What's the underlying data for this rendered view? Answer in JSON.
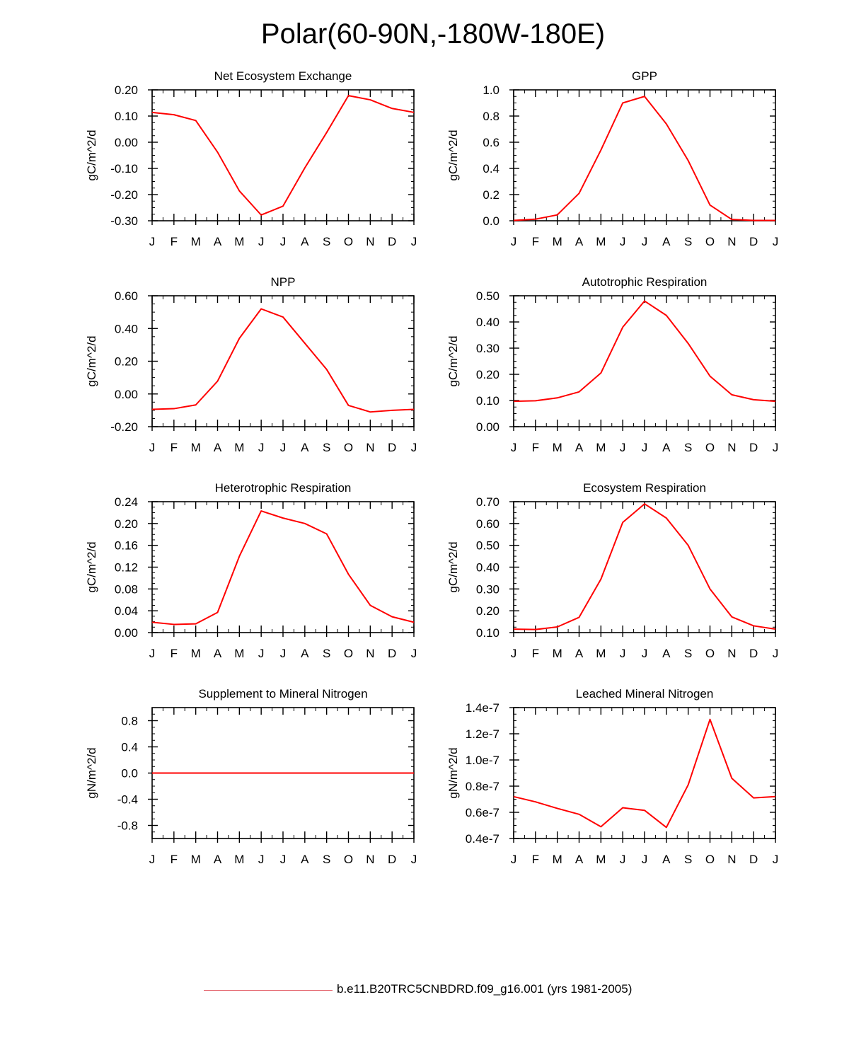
{
  "figure": {
    "title": "Polar(60-90N,-180W-180E)",
    "legend": {
      "label": "b.e11.B20TRC5CNBDRD.f09_g16.001 (yrs 1981-2005)",
      "color": "#e0505a"
    },
    "line_color": "#ff0000"
  },
  "chart_data": [
    {
      "type": "line",
      "title": "Net Ecosystem Exchange",
      "ylabel": "gC/m^2/d",
      "categories": [
        "J",
        "F",
        "M",
        "A",
        "M",
        "J",
        "J",
        "A",
        "S",
        "O",
        "N",
        "D",
        "J"
      ],
      "ylim": [
        -0.3,
        0.2
      ],
      "yticks": [
        -0.3,
        -0.2,
        -0.1,
        0.0,
        0.1,
        0.2
      ],
      "ytick_labels": [
        "-0.30",
        "-0.20",
        "-0.10",
        "0.00",
        "0.10",
        "0.20"
      ],
      "values": [
        0.114,
        0.105,
        0.083,
        -0.038,
        -0.186,
        -0.278,
        -0.244,
        -0.098,
        0.037,
        0.178,
        0.162,
        0.129,
        0.114
      ]
    },
    {
      "type": "line",
      "title": "GPP",
      "ylabel": "gC/m^2/d",
      "categories": [
        "J",
        "F",
        "M",
        "A",
        "M",
        "J",
        "J",
        "A",
        "S",
        "O",
        "N",
        "D",
        "J"
      ],
      "ylim": [
        0.0,
        1.0
      ],
      "yticks": [
        0.0,
        0.2,
        0.4,
        0.6,
        0.8,
        1.0
      ],
      "ytick_labels": [
        "0.0",
        "0.2",
        "0.4",
        "0.6",
        "0.8",
        "1.0"
      ],
      "values": [
        0.003,
        0.012,
        0.045,
        0.21,
        0.54,
        0.9,
        0.95,
        0.74,
        0.46,
        0.12,
        0.01,
        0.003,
        0.003
      ]
    },
    {
      "type": "line",
      "title": "NPP",
      "ylabel": "gC/m^2/d",
      "categories": [
        "J",
        "F",
        "M",
        "A",
        "M",
        "J",
        "J",
        "A",
        "S",
        "O",
        "N",
        "D",
        "J"
      ],
      "ylim": [
        -0.2,
        0.6
      ],
      "yticks": [
        -0.2,
        0.0,
        0.2,
        0.4,
        0.6
      ],
      "ytick_labels": [
        "-0.20",
        "0.00",
        "0.20",
        "0.40",
        "0.60"
      ],
      "values": [
        -0.094,
        -0.09,
        -0.067,
        0.078,
        0.34,
        0.52,
        0.47,
        0.31,
        0.15,
        -0.07,
        -0.11,
        -0.1,
        -0.094
      ]
    },
    {
      "type": "line",
      "title": "Autotrophic Respiration",
      "ylabel": "gC/m^2/d",
      "categories": [
        "J",
        "F",
        "M",
        "A",
        "M",
        "J",
        "J",
        "A",
        "S",
        "O",
        "N",
        "D",
        "J"
      ],
      "ylim": [
        0.0,
        0.5
      ],
      "yticks": [
        0.0,
        0.1,
        0.2,
        0.3,
        0.4,
        0.5
      ],
      "ytick_labels": [
        "0.00",
        "0.10",
        "0.20",
        "0.30",
        "0.40",
        "0.50"
      ],
      "values": [
        0.097,
        0.099,
        0.11,
        0.133,
        0.205,
        0.38,
        0.48,
        0.425,
        0.318,
        0.193,
        0.122,
        0.103,
        0.097
      ]
    },
    {
      "type": "line",
      "title": "Heterotrophic Respiration",
      "ylabel": "gC/m^2/d",
      "categories": [
        "J",
        "F",
        "M",
        "A",
        "M",
        "J",
        "J",
        "A",
        "S",
        "O",
        "N",
        "D",
        "J"
      ],
      "ylim": [
        0.0,
        0.24
      ],
      "yticks": [
        0.0,
        0.04,
        0.08,
        0.12,
        0.16,
        0.2,
        0.24
      ],
      "ytick_labels": [
        "0.00",
        "0.04",
        "0.08",
        "0.12",
        "0.16",
        "0.20",
        "0.24"
      ],
      "values": [
        0.019,
        0.015,
        0.016,
        0.037,
        0.14,
        0.223,
        0.21,
        0.2,
        0.181,
        0.107,
        0.05,
        0.029,
        0.019
      ]
    },
    {
      "type": "line",
      "title": "Ecosystem Respiration",
      "ylabel": "gC/m^2/d",
      "categories": [
        "J",
        "F",
        "M",
        "A",
        "M",
        "J",
        "J",
        "A",
        "S",
        "O",
        "N",
        "D",
        "J"
      ],
      "ylim": [
        0.1,
        0.7
      ],
      "yticks": [
        0.1,
        0.2,
        0.3,
        0.4,
        0.5,
        0.6,
        0.7
      ],
      "ytick_labels": [
        "0.10",
        "0.20",
        "0.30",
        "0.40",
        "0.50",
        "0.60",
        "0.70"
      ],
      "values": [
        0.116,
        0.114,
        0.126,
        0.17,
        0.345,
        0.605,
        0.69,
        0.625,
        0.5,
        0.3,
        0.172,
        0.131,
        0.116
      ]
    },
    {
      "type": "line",
      "title": "Supplement to Mineral Nitrogen",
      "ylabel": "gN/m^2/d",
      "categories": [
        "J",
        "F",
        "M",
        "A",
        "M",
        "J",
        "J",
        "A",
        "S",
        "O",
        "N",
        "D",
        "J"
      ],
      "ylim": [
        -1.0,
        1.0
      ],
      "yticks": [
        -0.8,
        -0.4,
        0.0,
        0.4,
        0.8
      ],
      "ytick_labels": [
        "-0.8",
        "-0.4",
        "0.0",
        "0.4",
        "0.8"
      ],
      "values": [
        0,
        0,
        0,
        0,
        0,
        0,
        0,
        0,
        0,
        0,
        0,
        0,
        0
      ]
    },
    {
      "type": "line",
      "title": "Leached Mineral Nitrogen",
      "ylabel": "gN/m^2/d",
      "categories": [
        "J",
        "F",
        "M",
        "A",
        "M",
        "J",
        "J",
        "A",
        "S",
        "O",
        "N",
        "D",
        "J"
      ],
      "ylim": [
        4e-08,
        1.4e-07
      ],
      "yticks": [
        4e-08,
        6e-08,
        8e-08,
        1e-07,
        1.2e-07,
        1.4e-07
      ],
      "ytick_labels": [
        "0.4e-7",
        "0.6e-7",
        "0.8e-7",
        "1.0e-7",
        "1.2e-7",
        "1.4e-7"
      ],
      "values": [
        7.2e-08,
        6.8e-08,
        6.3e-08,
        5.85e-08,
        4.9e-08,
        6.35e-08,
        6.15e-08,
        4.85e-08,
        8.1e-08,
        1.31e-07,
        8.6e-08,
        7.1e-08,
        7.2e-08
      ]
    }
  ]
}
